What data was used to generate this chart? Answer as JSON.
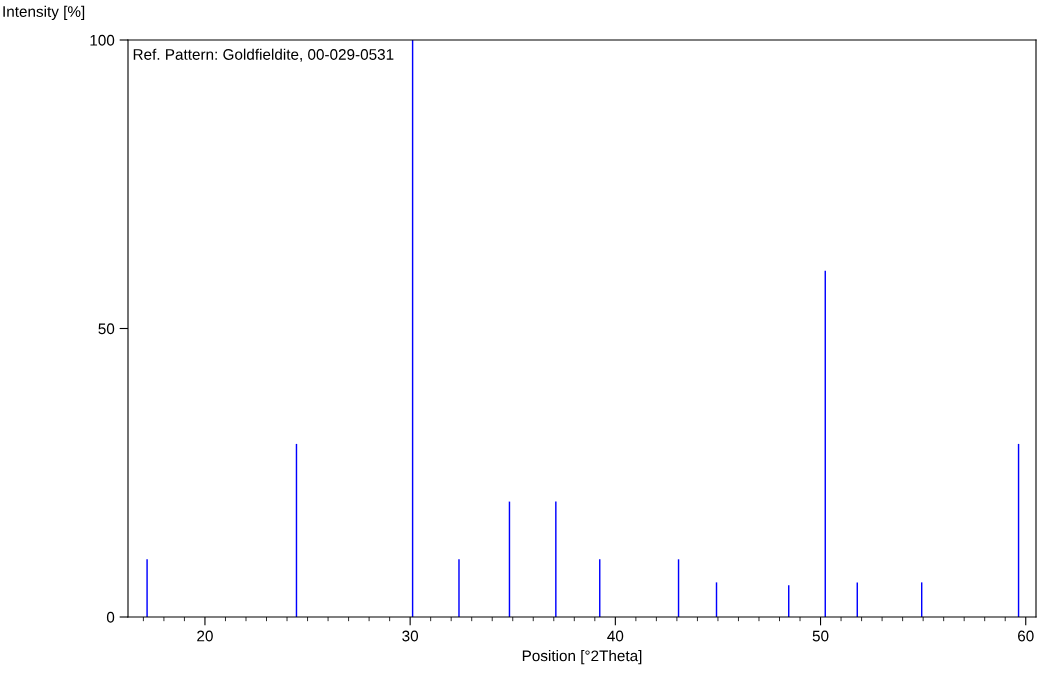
{
  "chart_data": {
    "type": "bar",
    "xlabel": "Position [°2Theta]",
    "ylabel": "Intensity [%]",
    "annotations": [
      "Ref. Pattern: Goldfieldite, 00-029-0531"
    ],
    "x": [
      17.18,
      24.46,
      30.12,
      32.38,
      34.84,
      37.1,
      39.24,
      43.08,
      44.93,
      48.45,
      50.23,
      51.79,
      54.93,
      59.65
    ],
    "values": [
      10,
      30,
      100,
      10,
      20,
      20,
      10,
      10,
      6,
      5.5,
      60,
      6,
      6,
      30
    ],
    "color": "#0000ff",
    "xlim": [
      16.25,
      60.5
    ],
    "xticks": [
      20,
      30,
      40,
      50,
      60
    ],
    "ylim": [
      0,
      100
    ],
    "yticks": [
      0,
      50,
      100
    ],
    "grid": false
  }
}
